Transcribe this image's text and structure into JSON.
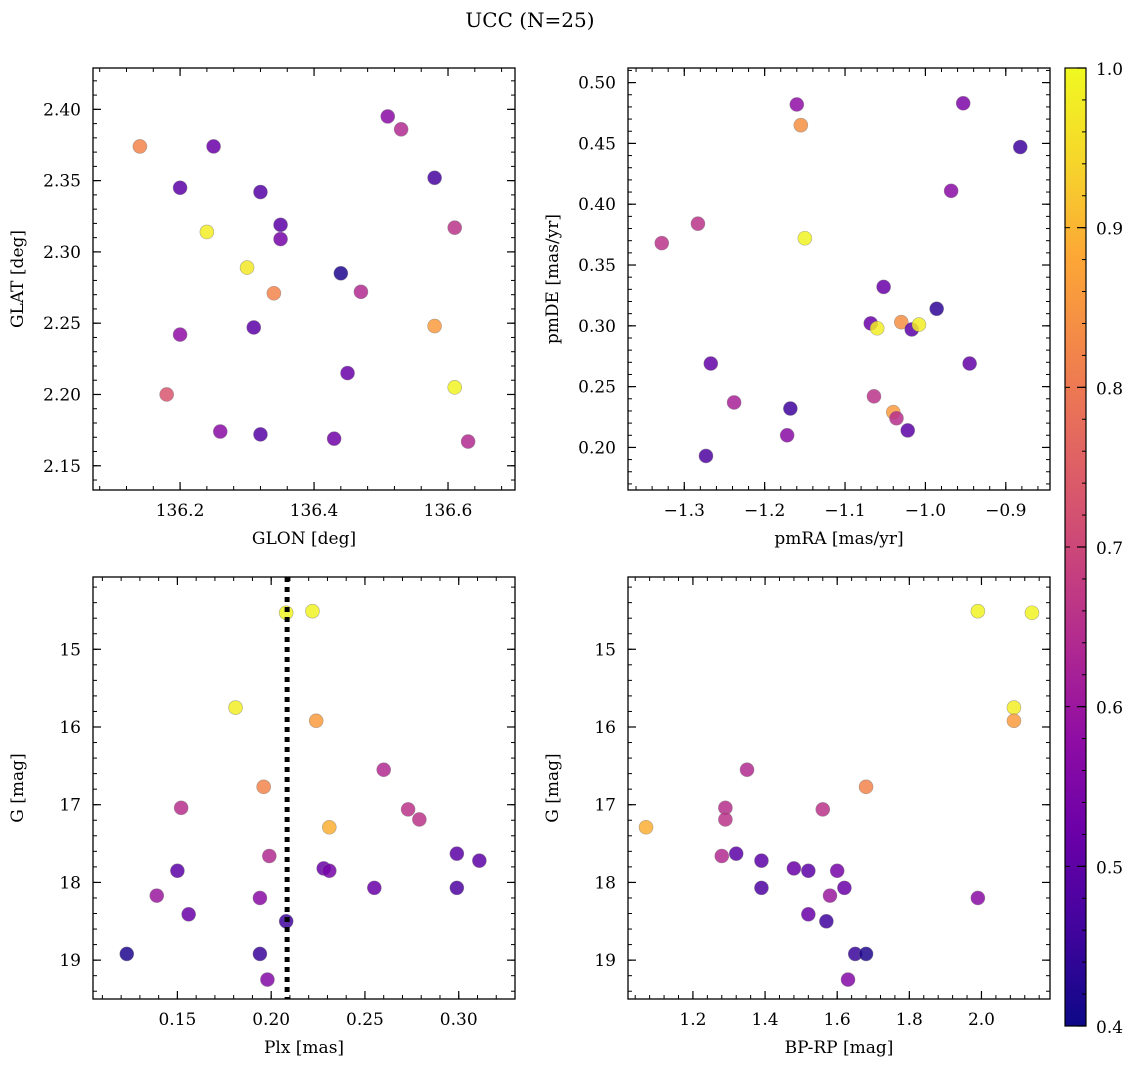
{
  "title": "UCC (N=25)",
  "colormap": {
    "name": "plasma",
    "min": 0.4,
    "max": 1.0,
    "tick_labels": [
      "0.4",
      "0.5",
      "0.6",
      "0.7",
      "0.8",
      "0.9",
      "1.0"
    ]
  },
  "chart_data": [
    {
      "type": "scatter",
      "xlabel": "GLON [deg]",
      "ylabel": "GLAT [deg]",
      "xlim": [
        136.07,
        136.7
      ],
      "ylim": [
        2.133,
        2.429
      ],
      "y_inverted": false,
      "xticks": [
        "136.2",
        "136.4",
        "136.6"
      ],
      "yticks": [
        "2.15",
        "2.20",
        "2.25",
        "2.30",
        "2.35",
        "2.40"
      ],
      "points": [
        {
          "x": 136.14,
          "y": 2.374,
          "c": 0.82
        },
        {
          "x": 136.2,
          "y": 2.345,
          "c": 0.5
        },
        {
          "x": 136.25,
          "y": 2.374,
          "c": 0.52
        },
        {
          "x": 136.32,
          "y": 2.342,
          "c": 0.49
        },
        {
          "x": 136.24,
          "y": 2.314,
          "c": 0.98
        },
        {
          "x": 136.35,
          "y": 2.319,
          "c": 0.5
        },
        {
          "x": 136.35,
          "y": 2.309,
          "c": 0.54
        },
        {
          "x": 136.3,
          "y": 2.289,
          "c": 0.97
        },
        {
          "x": 136.34,
          "y": 2.271,
          "c": 0.82
        },
        {
          "x": 136.31,
          "y": 2.247,
          "c": 0.5
        },
        {
          "x": 136.2,
          "y": 2.242,
          "c": 0.58
        },
        {
          "x": 136.18,
          "y": 2.2,
          "c": 0.73
        },
        {
          "x": 136.26,
          "y": 2.174,
          "c": 0.57
        },
        {
          "x": 136.32,
          "y": 2.172,
          "c": 0.49
        },
        {
          "x": 136.44,
          "y": 2.285,
          "c": 0.42
        },
        {
          "x": 136.47,
          "y": 2.272,
          "c": 0.64
        },
        {
          "x": 136.45,
          "y": 2.215,
          "c": 0.52
        },
        {
          "x": 136.43,
          "y": 2.169,
          "c": 0.53
        },
        {
          "x": 136.51,
          "y": 2.395,
          "c": 0.57
        },
        {
          "x": 136.53,
          "y": 2.386,
          "c": 0.64
        },
        {
          "x": 136.58,
          "y": 2.352,
          "c": 0.47
        },
        {
          "x": 136.61,
          "y": 2.317,
          "c": 0.66
        },
        {
          "x": 136.58,
          "y": 2.248,
          "c": 0.86
        },
        {
          "x": 136.61,
          "y": 2.205,
          "c": 0.99
        },
        {
          "x": 136.63,
          "y": 2.167,
          "c": 0.64
        }
      ]
    },
    {
      "type": "scatter",
      "xlabel": "pmRA [mas/yr]",
      "ylabel": "pmDE [mas/yr]",
      "xlim": [
        -1.37,
        -0.845
      ],
      "ylim": [
        0.165,
        0.512
      ],
      "y_inverted": false,
      "xticks": [
        "−1.3",
        "−1.2",
        "−1.1",
        "−1.0",
        "−0.9"
      ],
      "yticks": [
        "0.20",
        "0.25",
        "0.30",
        "0.35",
        "0.40",
        "0.45",
        "0.50"
      ],
      "points": [
        {
          "x": -1.16,
          "y": 0.482,
          "c": 0.58
        },
        {
          "x": -1.155,
          "y": 0.465,
          "c": 0.84
        },
        {
          "x": -0.953,
          "y": 0.483,
          "c": 0.55
        },
        {
          "x": -0.882,
          "y": 0.447,
          "c": 0.46
        },
        {
          "x": -0.968,
          "y": 0.411,
          "c": 0.57
        },
        {
          "x": -1.328,
          "y": 0.368,
          "c": 0.66
        },
        {
          "x": -1.283,
          "y": 0.384,
          "c": 0.66
        },
        {
          "x": -1.15,
          "y": 0.372,
          "c": 0.99
        },
        {
          "x": -1.052,
          "y": 0.332,
          "c": 0.52
        },
        {
          "x": -0.986,
          "y": 0.314,
          "c": 0.44
        },
        {
          "x": -1.068,
          "y": 0.302,
          "c": 0.52
        },
        {
          "x": -1.06,
          "y": 0.298,
          "c": 0.98
        },
        {
          "x": -1.03,
          "y": 0.303,
          "c": 0.84
        },
        {
          "x": -1.017,
          "y": 0.297,
          "c": 0.5
        },
        {
          "x": -1.008,
          "y": 0.301,
          "c": 0.98
        },
        {
          "x": -1.267,
          "y": 0.269,
          "c": 0.51
        },
        {
          "x": -0.945,
          "y": 0.269,
          "c": 0.51
        },
        {
          "x": -1.238,
          "y": 0.237,
          "c": 0.62
        },
        {
          "x": -1.064,
          "y": 0.242,
          "c": 0.66
        },
        {
          "x": -1.168,
          "y": 0.232,
          "c": 0.46
        },
        {
          "x": -1.04,
          "y": 0.229,
          "c": 0.86
        },
        {
          "x": -1.036,
          "y": 0.224,
          "c": 0.65
        },
        {
          "x": -1.172,
          "y": 0.21,
          "c": 0.57
        },
        {
          "x": -1.022,
          "y": 0.214,
          "c": 0.5
        },
        {
          "x": -1.273,
          "y": 0.193,
          "c": 0.48
        }
      ]
    },
    {
      "type": "scatter",
      "xlabel": "Plx [mas]",
      "ylabel": "G [mag]",
      "xlim": [
        0.105,
        0.33
      ],
      "ylim": [
        14.07,
        19.5
      ],
      "y_inverted": true,
      "xticks": [
        "0.15",
        "0.20",
        "0.25",
        "0.30"
      ],
      "yticks": [
        "15",
        "16",
        "17",
        "18",
        "19"
      ],
      "vline": {
        "x": 0.2085,
        "style": "dotted",
        "color": "#000000"
      },
      "points": [
        {
          "x": 0.208,
          "y": 14.53,
          "c": 0.99
        },
        {
          "x": 0.222,
          "y": 14.51,
          "c": 0.99
        },
        {
          "x": 0.181,
          "y": 15.75,
          "c": 0.98
        },
        {
          "x": 0.224,
          "y": 15.92,
          "c": 0.86
        },
        {
          "x": 0.26,
          "y": 16.55,
          "c": 0.64
        },
        {
          "x": 0.196,
          "y": 16.77,
          "c": 0.82
        },
        {
          "x": 0.152,
          "y": 17.04,
          "c": 0.65
        },
        {
          "x": 0.273,
          "y": 17.06,
          "c": 0.66
        },
        {
          "x": 0.279,
          "y": 17.19,
          "c": 0.66
        },
        {
          "x": 0.231,
          "y": 17.29,
          "c": 0.89
        },
        {
          "x": 0.199,
          "y": 17.66,
          "c": 0.64
        },
        {
          "x": 0.299,
          "y": 17.63,
          "c": 0.5
        },
        {
          "x": 0.311,
          "y": 17.72,
          "c": 0.5
        },
        {
          "x": 0.228,
          "y": 17.82,
          "c": 0.52
        },
        {
          "x": 0.231,
          "y": 17.85,
          "c": 0.54
        },
        {
          "x": 0.15,
          "y": 17.85,
          "c": 0.5
        },
        {
          "x": 0.255,
          "y": 18.07,
          "c": 0.52
        },
        {
          "x": 0.299,
          "y": 18.07,
          "c": 0.48
        },
        {
          "x": 0.139,
          "y": 18.17,
          "c": 0.6
        },
        {
          "x": 0.194,
          "y": 18.2,
          "c": 0.57
        },
        {
          "x": 0.156,
          "y": 18.41,
          "c": 0.52
        },
        {
          "x": 0.208,
          "y": 18.5,
          "c": 0.46
        },
        {
          "x": 0.123,
          "y": 18.92,
          "c": 0.42
        },
        {
          "x": 0.194,
          "y": 18.92,
          "c": 0.45
        },
        {
          "x": 0.198,
          "y": 19.25,
          "c": 0.56
        }
      ]
    },
    {
      "type": "scatter",
      "xlabel": "BP-RP [mag]",
      "ylabel": "G [mag]",
      "xlim": [
        1.02,
        2.19
      ],
      "ylim": [
        14.07,
        19.5
      ],
      "y_inverted": true,
      "xticks": [
        "1.2",
        "1.4",
        "1.6",
        "1.8",
        "2.0"
      ],
      "yticks": [
        "15",
        "16",
        "17",
        "18",
        "19"
      ],
      "points": [
        {
          "x": 1.99,
          "y": 14.51,
          "c": 0.99
        },
        {
          "x": 2.14,
          "y": 14.53,
          "c": 0.99
        },
        {
          "x": 2.09,
          "y": 15.75,
          "c": 0.98
        },
        {
          "x": 2.09,
          "y": 15.92,
          "c": 0.86
        },
        {
          "x": 1.35,
          "y": 16.55,
          "c": 0.64
        },
        {
          "x": 1.68,
          "y": 16.77,
          "c": 0.82
        },
        {
          "x": 1.29,
          "y": 17.04,
          "c": 0.65
        },
        {
          "x": 1.29,
          "y": 17.19,
          "c": 0.66
        },
        {
          "x": 1.56,
          "y": 17.06,
          "c": 0.66
        },
        {
          "x": 1.07,
          "y": 17.29,
          "c": 0.89
        },
        {
          "x": 1.28,
          "y": 17.66,
          "c": 0.64
        },
        {
          "x": 1.32,
          "y": 17.63,
          "c": 0.5
        },
        {
          "x": 1.39,
          "y": 17.72,
          "c": 0.5
        },
        {
          "x": 1.48,
          "y": 17.82,
          "c": 0.52
        },
        {
          "x": 1.52,
          "y": 17.85,
          "c": 0.5
        },
        {
          "x": 1.6,
          "y": 17.85,
          "c": 0.54
        },
        {
          "x": 1.39,
          "y": 18.07,
          "c": 0.48
        },
        {
          "x": 1.62,
          "y": 18.07,
          "c": 0.52
        },
        {
          "x": 1.58,
          "y": 18.17,
          "c": 0.6
        },
        {
          "x": 1.99,
          "y": 18.2,
          "c": 0.57
        },
        {
          "x": 1.52,
          "y": 18.41,
          "c": 0.52
        },
        {
          "x": 1.57,
          "y": 18.5,
          "c": 0.46
        },
        {
          "x": 1.65,
          "y": 18.92,
          "c": 0.45
        },
        {
          "x": 1.68,
          "y": 18.92,
          "c": 0.42
        },
        {
          "x": 1.63,
          "y": 19.25,
          "c": 0.56
        }
      ]
    }
  ]
}
